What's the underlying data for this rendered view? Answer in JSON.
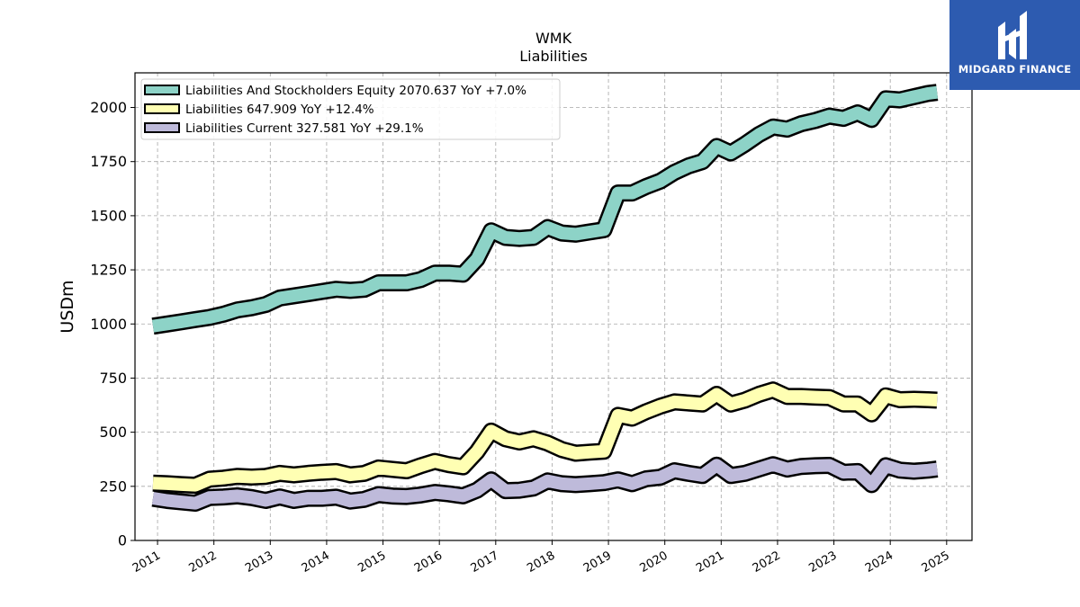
{
  "chart_data": {
    "type": "line",
    "title": "WMK",
    "subtitle": "Liabilities",
    "xlabel": "",
    "ylabel": "USDm",
    "xlim": [
      2010.6,
      2025.45
    ],
    "ylim": [
      0,
      2160
    ],
    "yticks": [
      0,
      250,
      500,
      750,
      1000,
      1250,
      1500,
      1750,
      2000
    ],
    "xticks": [
      "2011",
      "2012",
      "2013",
      "2014",
      "2015",
      "2016",
      "2017",
      "2018",
      "2019",
      "2020",
      "2021",
      "2022",
      "2023",
      "2024",
      "2025"
    ],
    "grid": true,
    "legend_position": "top-left",
    "x": [
      2010.92,
      2011.17,
      2011.42,
      2011.67,
      2011.92,
      2012.17,
      2012.42,
      2012.67,
      2012.92,
      2013.17,
      2013.42,
      2013.67,
      2013.92,
      2014.17,
      2014.42,
      2014.67,
      2014.92,
      2015.17,
      2015.42,
      2015.67,
      2015.92,
      2016.17,
      2016.42,
      2016.67,
      2016.92,
      2017.17,
      2017.42,
      2017.67,
      2017.92,
      2018.17,
      2018.42,
      2018.67,
      2018.92,
      2019.17,
      2019.42,
      2019.67,
      2019.92,
      2020.17,
      2020.42,
      2020.67,
      2020.92,
      2021.17,
      2021.42,
      2021.67,
      2021.92,
      2022.17,
      2022.42,
      2022.67,
      2022.92,
      2023.17,
      2023.42,
      2023.67,
      2023.92,
      2024.17,
      2024.42,
      2024.67,
      2024.83
    ],
    "series": [
      {
        "name": "Liabilities And Stockholders Equity  2070.637 YoY +7.0%",
        "color": "#8dd3c7",
        "values": [
          990,
          1000,
          1010,
          1020,
          1030,
          1045,
          1065,
          1075,
          1090,
          1120,
          1130,
          1140,
          1150,
          1160,
          1155,
          1160,
          1190,
          1190,
          1190,
          1205,
          1235,
          1235,
          1230,
          1300,
          1430,
          1400,
          1395,
          1400,
          1445,
          1420,
          1415,
          1425,
          1435,
          1605,
          1605,
          1635,
          1660,
          1700,
          1730,
          1750,
          1820,
          1790,
          1830,
          1875,
          1910,
          1900,
          1925,
          1940,
          1960,
          1950,
          1975,
          1945,
          2040,
          2035,
          2050,
          2065,
          2070
        ]
      },
      {
        "name": "Liabilities  647.909 YoY +12.4%",
        "color": "#ffffb3",
        "values": [
          265,
          262,
          258,
          255,
          283,
          288,
          296,
          293,
          296,
          310,
          303,
          310,
          315,
          318,
          303,
          310,
          335,
          328,
          322,
          345,
          365,
          350,
          340,
          410,
          505,
          470,
          455,
          470,
          450,
          420,
          403,
          408,
          412,
          578,
          565,
          595,
          620,
          640,
          635,
          630,
          675,
          630,
          648,
          675,
          695,
          665,
          665,
          662,
          660,
          630,
          630,
          585,
          668,
          650,
          652,
          650,
          648
        ]
      },
      {
        "name": "Liabilities Current  327.581 YoY +29.1%",
        "color": "#bebada",
        "values": [
          195,
          185,
          178,
          172,
          198,
          201,
          206,
          198,
          185,
          201,
          185,
          195,
          195,
          200,
          182,
          190,
          212,
          205,
          203,
          210,
          222,
          215,
          206,
          232,
          280,
          230,
          232,
          242,
          275,
          262,
          258,
          262,
          267,
          280,
          262,
          285,
          292,
          322,
          310,
          300,
          348,
          300,
          310,
          330,
          350,
          330,
          342,
          345,
          347,
          315,
          318,
          258,
          345,
          325,
          320,
          325,
          330
        ]
      }
    ]
  },
  "logo": {
    "text": "MIDGARD FINANCE",
    "background": "#2d5bb0"
  }
}
